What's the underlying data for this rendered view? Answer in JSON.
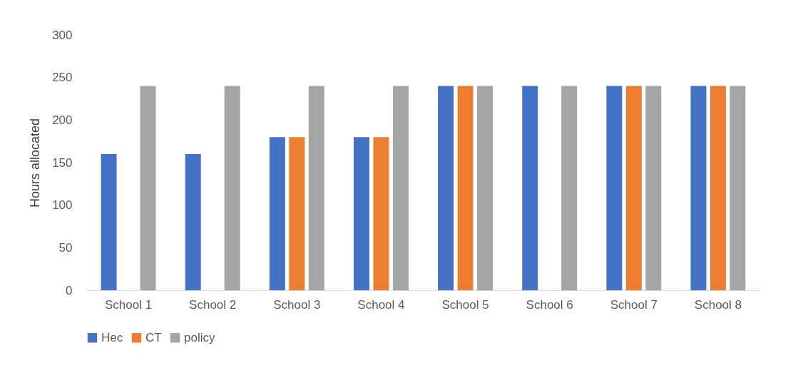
{
  "chart_data": {
    "type": "bar",
    "ylabel": "Hours allocated",
    "categories": [
      "School 1",
      "School 2",
      "School 3",
      "School 4",
      "School 5",
      "School 6",
      "School 7",
      "School 8"
    ],
    "series": [
      {
        "name": "Hec",
        "color": "#4472c4",
        "values": [
          160,
          160,
          180,
          180,
          240,
          240,
          240,
          240
        ]
      },
      {
        "name": "CT",
        "color": "#ed7d31",
        "values": [
          null,
          null,
          180,
          180,
          240,
          null,
          240,
          240
        ]
      },
      {
        "name": "policy",
        "color": "#a5a5a5",
        "values": [
          240,
          240,
          240,
          240,
          240,
          240,
          240,
          240
        ]
      }
    ],
    "ylim": [
      0,
      300
    ],
    "yticks": [
      0,
      50,
      100,
      150,
      200,
      250,
      300
    ],
    "grid": false,
    "legend": "bottom"
  }
}
